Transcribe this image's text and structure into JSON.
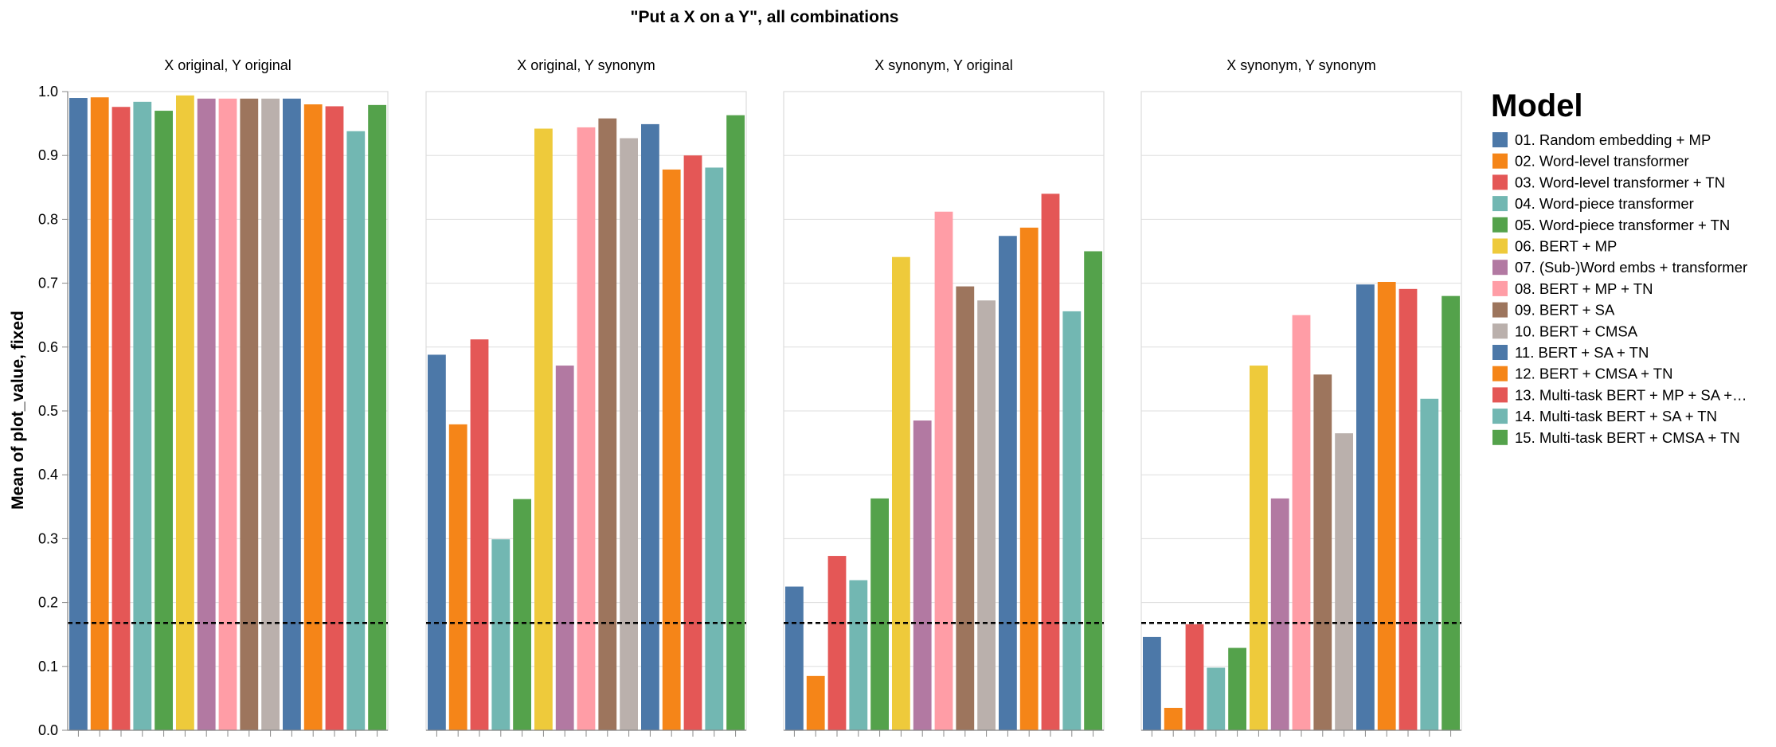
{
  "chart_data": {
    "type": "bar",
    "title": "\"Put a X on a Y\", all combinations",
    "ylabel": "Mean of plot_value, fixed",
    "ylim": [
      0,
      1
    ],
    "yticks": [
      "0.0",
      "0.1",
      "0.2",
      "0.3",
      "0.4",
      "0.5",
      "0.6",
      "0.7",
      "0.8",
      "0.9",
      "1.0"
    ],
    "reference_line": 0.168,
    "legend_title": "Model",
    "legend_position": "right",
    "categories": [
      "01. Random embedding + MP",
      "02. Word-level transformer",
      "03. Word-level transformer + TN",
      "04. Word-piece transformer",
      "05. Word-piece transformer + TN",
      "06. BERT + MP",
      "07. (Sub-)Word embs + transformer",
      "08. BERT + MP + TN",
      "09. BERT + SA",
      "10. BERT + CMSA",
      "11. BERT + SA + TN",
      "12. BERT + CMSA + TN",
      "13. Multi-task BERT + MP + SA +…",
      "14. Multi-task BERT + SA + TN",
      "15. Multi-task BERT + CMSA + TN"
    ],
    "colors": [
      "#4c78a8",
      "#f58518",
      "#e45756",
      "#72b7b2",
      "#54a24b",
      "#eeca3b",
      "#b279a2",
      "#ff9da6",
      "#9d755d",
      "#bab0ac",
      "#4c78a8",
      "#f58518",
      "#e45756",
      "#72b7b2",
      "#54a24b"
    ],
    "panels": [
      {
        "title": "X original, Y original",
        "values": [
          0.99,
          0.991,
          0.976,
          0.984,
          0.97,
          0.994,
          0.989,
          0.989,
          0.989,
          0.989,
          0.989,
          0.98,
          0.977,
          0.938,
          0.979
        ]
      },
      {
        "title": "X original, Y synonym",
        "values": [
          0.588,
          0.479,
          0.612,
          0.299,
          0.362,
          0.942,
          0.571,
          0.944,
          0.958,
          0.927,
          0.949,
          0.878,
          0.9,
          0.881,
          0.963
        ]
      },
      {
        "title": "X synonym, Y original",
        "values": [
          0.225,
          0.085,
          0.273,
          0.235,
          0.363,
          0.741,
          0.485,
          0.812,
          0.695,
          0.673,
          0.774,
          0.787,
          0.84,
          0.656,
          0.75
        ]
      },
      {
        "title": "X synonym, Y synonym",
        "values": [
          0.146,
          0.035,
          0.166,
          0.098,
          0.129,
          0.571,
          0.363,
          0.65,
          0.557,
          0.465,
          0.698,
          0.702,
          0.691,
          0.519,
          0.68
        ]
      }
    ]
  }
}
